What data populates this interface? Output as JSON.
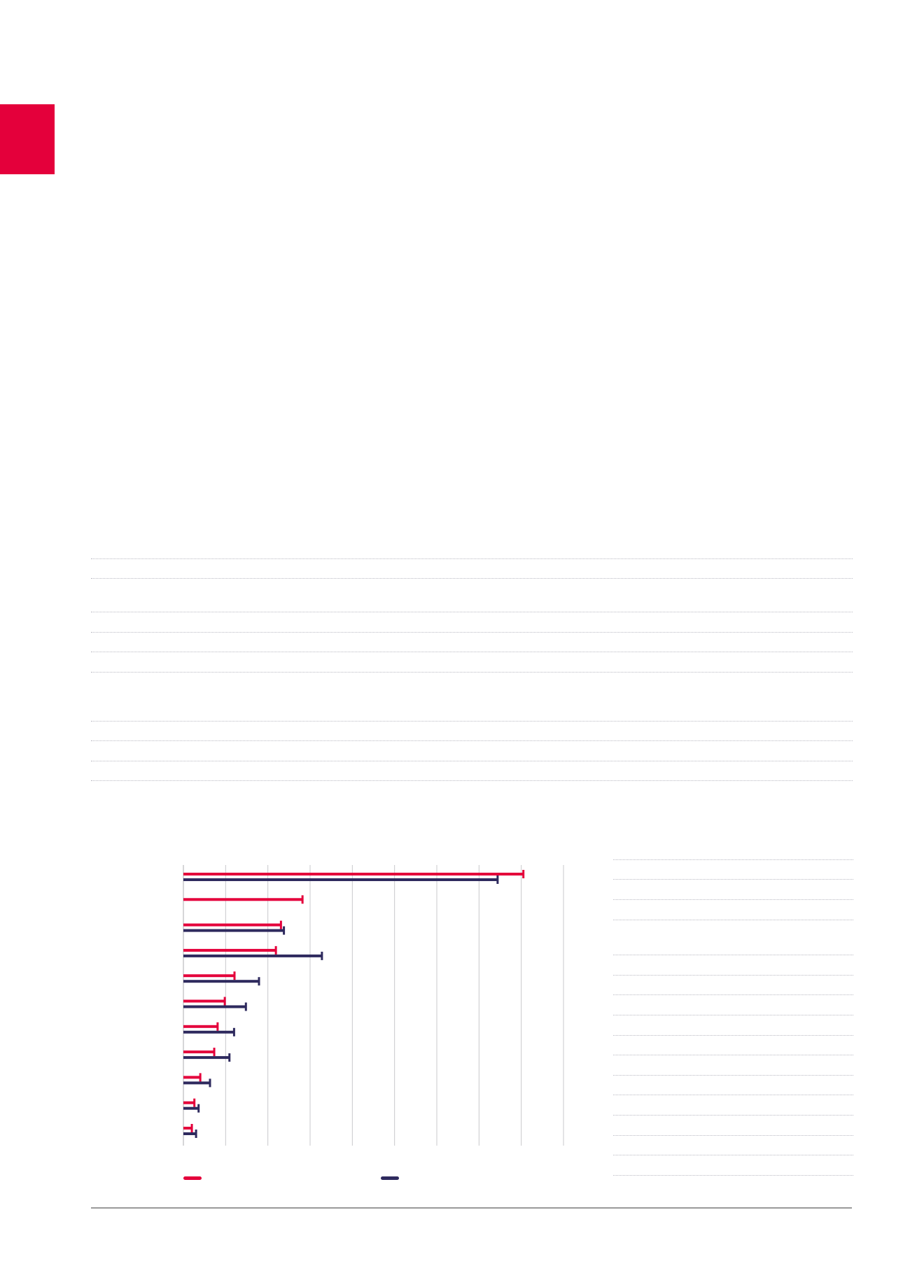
{
  "colors": {
    "accent": "#E4003B",
    "navy": "#2E2A5E",
    "grid": "#c8c8cc",
    "rule": "#9a9a9a",
    "dots": "#b9b9c2"
  },
  "chart_data": {
    "type": "bar",
    "orientation": "horizontal",
    "grid": true,
    "legend": "bottom",
    "categories": [
      "",
      "",
      "",
      "",
      "",
      "",
      "",
      "",
      "",
      "",
      ""
    ],
    "series": [
      {
        "color": "#E4003B",
        "values": [
          8.05,
          2.82,
          2.31,
          2.19,
          1.21,
          0.98,
          0.81,
          0.73,
          0.4,
          0.26,
          0.2
        ]
      },
      {
        "color": "#2E2A5E",
        "values": [
          7.44,
          null,
          2.38,
          3.28,
          1.79,
          1.48,
          1.2,
          1.09,
          0.63,
          0.36,
          0.3
        ]
      }
    ],
    "xlim": [
      0,
      9
    ]
  }
}
